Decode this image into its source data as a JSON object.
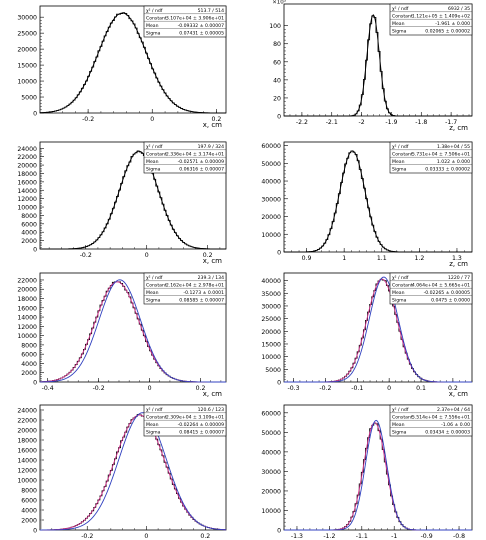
{
  "chart_data": [
    {
      "type": "histogram",
      "xlabel": "x, cm",
      "xticks": [
        "-0.2",
        "0",
        "0.2"
      ],
      "xlim": [
        -0.35,
        0.23
      ],
      "yticks": [
        "0",
        "5000",
        "10000",
        "15000",
        "20000",
        "25000",
        "30000"
      ],
      "ylim": [
        0,
        33500
      ],
      "ymult": "",
      "fit_colors": [
        "#000000"
      ],
      "series": [
        {
          "mean": -0.0933,
          "sigma": 0.0743,
          "amp": 31300
        }
      ],
      "stats": [
        {
          "label": "χ² / ndf",
          "value": "513.7 / 514"
        },
        {
          "label": "Constant",
          "value": "3.107e+04 ± 3.906e+01"
        },
        {
          "label": "Mean",
          "value": "-0.09332 ± 0.00007"
        },
        {
          "label": "Sigma",
          "value": "0.07431 ± 0.00005"
        }
      ]
    },
    {
      "type": "histogram",
      "xlabel": "z, cm",
      "xticks": [
        "-2.2",
        "-2.1",
        "-2",
        "-1.9",
        "-1.8",
        "-1.7"
      ],
      "xlim": [
        -2.26,
        -1.63
      ],
      "yticks": [
        "0",
        "20",
        "40",
        "60",
        "80",
        "100"
      ],
      "ylim": [
        0,
        124
      ],
      "ymult": "×10³",
      "fit_colors": [
        "#000000"
      ],
      "series": [
        {
          "mean": -1.961,
          "sigma": 0.0207,
          "amp": 112
        }
      ],
      "stats": [
        {
          "label": "χ² / ndf",
          "value": "6932 / 35"
        },
        {
          "label": "Constant",
          "value": "1.121e+05 ± 1.409e+02"
        },
        {
          "label": "Mean",
          "value": "-1.961 ± 0.000"
        },
        {
          "label": "Sigma",
          "value": "0.02065 ± 0.00002"
        }
      ]
    },
    {
      "type": "histogram",
      "xlabel": "x, cm",
      "xticks": [
        "-0.2",
        "0",
        "0.2"
      ],
      "xlim": [
        -0.35,
        0.26
      ],
      "yticks": [
        "0",
        "2000",
        "4000",
        "6000",
        "8000",
        "10000",
        "12000",
        "14000",
        "16000",
        "18000",
        "20000",
        "22000",
        "24000"
      ],
      "ylim": [
        0,
        25500
      ],
      "ymult": "",
      "fit_colors": [
        "#000000"
      ],
      "series": [
        {
          "mean": -0.0257,
          "sigma": 0.0632,
          "amp": 23300
        }
      ],
      "stats": [
        {
          "label": "χ² / ndf",
          "value": "197.9 / 324"
        },
        {
          "label": "Constant",
          "value": "2.336e+04 ± 3.174e+01"
        },
        {
          "label": "Mean",
          "value": "-0.02571 ± 0.00009"
        },
        {
          "label": "Sigma",
          "value": "0.06316 ± 0.00007"
        }
      ]
    },
    {
      "type": "histogram",
      "xlabel": "z, cm",
      "xticks": [
        "0.9",
        "1",
        "1.1",
        "1.2",
        "1.3"
      ],
      "xlim": [
        0.84,
        1.34
      ],
      "yticks": [
        "0",
        "10000",
        "20000",
        "30000",
        "40000",
        "50000",
        "60000"
      ],
      "ylim": [
        0,
        62000
      ],
      "ymult": "",
      "fit_colors": [
        "#000000"
      ],
      "series": [
        {
          "mean": 1.022,
          "sigma": 0.0333,
          "amp": 57000
        }
      ],
      "stats": [
        {
          "label": "χ² / ndf",
          "value": "1.38e+04 / 55"
        },
        {
          "label": "Constant",
          "value": "5.731e+04 ± 7.506e+01"
        },
        {
          "label": "Mean",
          "value": "1.022 ± 0.000"
        },
        {
          "label": "Sigma",
          "value": "0.03333 ± 0.00002"
        }
      ]
    },
    {
      "type": "histogram",
      "xlabel": "x, cm",
      "xticks": [
        "-0.4",
        "-0.2",
        "0",
        "0.2"
      ],
      "xlim": [
        -0.43,
        0.3
      ],
      "yticks": [
        "0",
        "2000",
        "4000",
        "6000",
        "8000",
        "10000",
        "12000",
        "14000",
        "16000",
        "18000",
        "20000",
        "22000"
      ],
      "ylim": [
        0,
        23500
      ],
      "ymult": "",
      "fit_colors": [
        "#d0308a",
        "#3040c0"
      ],
      "series": [
        {
          "mean": -0.1273,
          "sigma": 0.0858,
          "amp": 21600
        }
      ],
      "stats": [
        {
          "label": "χ² / ndf",
          "value": "239.3 / 134"
        },
        {
          "label": "Constant",
          "value": "2.162e+04 ± 2.978e+01"
        },
        {
          "label": "Mean",
          "value": "-0.1273 ± 0.0001"
        },
        {
          "label": "Sigma",
          "value": "0.08585 ± 0.00007"
        }
      ]
    },
    {
      "type": "histogram",
      "xlabel": "x, cm",
      "xticks": [
        "-0.3",
        "-0.2",
        "-0.1",
        "0",
        "0.1",
        "0.2"
      ],
      "xlim": [
        -0.33,
        0.26
      ],
      "yticks": [
        "0",
        "5000",
        "10000",
        "15000",
        "20000",
        "25000",
        "30000",
        "35000",
        "40000"
      ],
      "ylim": [
        0,
        43000
      ],
      "ymult": "",
      "fit_colors": [
        "#d0308a",
        "#3040c0"
      ],
      "series": [
        {
          "mean": -0.0226,
          "sigma": 0.0475,
          "amp": 40600
        }
      ],
      "stats": [
        {
          "label": "χ² / ndf",
          "value": "1220 / 77"
        },
        {
          "label": "Constant",
          "value": "4.064e+04 ± 5.665e+01"
        },
        {
          "label": "Mean",
          "value": "-0.02265 ± 0.00005"
        },
        {
          "label": "Sigma",
          "value": "0.0475 ± 0.0000"
        }
      ]
    },
    {
      "type": "histogram",
      "xlabel": "x, cm",
      "xticks": [
        "-0.2",
        "0",
        "0.2"
      ],
      "xlim": [
        -0.36,
        0.27
      ],
      "yticks": [
        "0",
        "2000",
        "4000",
        "6000",
        "8000",
        "10000",
        "12000",
        "14000",
        "16000",
        "18000",
        "20000",
        "22000",
        "24000"
      ],
      "ylim": [
        0,
        25000
      ],
      "ymult": "",
      "fit_colors": [
        "#d0308a",
        "#3040c0"
      ],
      "series": [
        {
          "mean": -0.0226,
          "sigma": 0.0842,
          "amp": 23000
        }
      ],
      "stats": [
        {
          "label": "χ² / ndf",
          "value": "120.6 / 123"
        },
        {
          "label": "Constant",
          "value": "2.309e+04 ± 3.109e+01"
        },
        {
          "label": "Mean",
          "value": "-0.02264 ± 0.00009"
        },
        {
          "label": "Sigma",
          "value": "0.08415 ± 0.00007"
        }
      ]
    },
    {
      "type": "histogram",
      "xlabel": "z, cm",
      "xticks": [
        "-1.3",
        "-1.2",
        "-1.1",
        "-1",
        "-0.9",
        "-0.8"
      ],
      "xlim": [
        -1.34,
        -0.76
      ],
      "yticks": [
        "0",
        "10000",
        "20000",
        "30000",
        "40000",
        "50000",
        "60000"
      ],
      "ylim": [
        0,
        64000
      ],
      "ymult": "",
      "fit_colors": [
        "#d0308a",
        "#3040c0"
      ],
      "series": [
        {
          "mean": -1.06,
          "sigma": 0.0343,
          "amp": 55000
        }
      ],
      "stats": [
        {
          "label": "χ² / ndf",
          "value": "2.37e+04 / 64"
        },
        {
          "label": "Constant",
          "value": "5.514e+04 ± 7.556e+01"
        },
        {
          "label": "Mean",
          "value": "-1.06 ± 0.00"
        },
        {
          "label": "Sigma",
          "value": "0.03434 ± 0.00003"
        }
      ]
    }
  ]
}
